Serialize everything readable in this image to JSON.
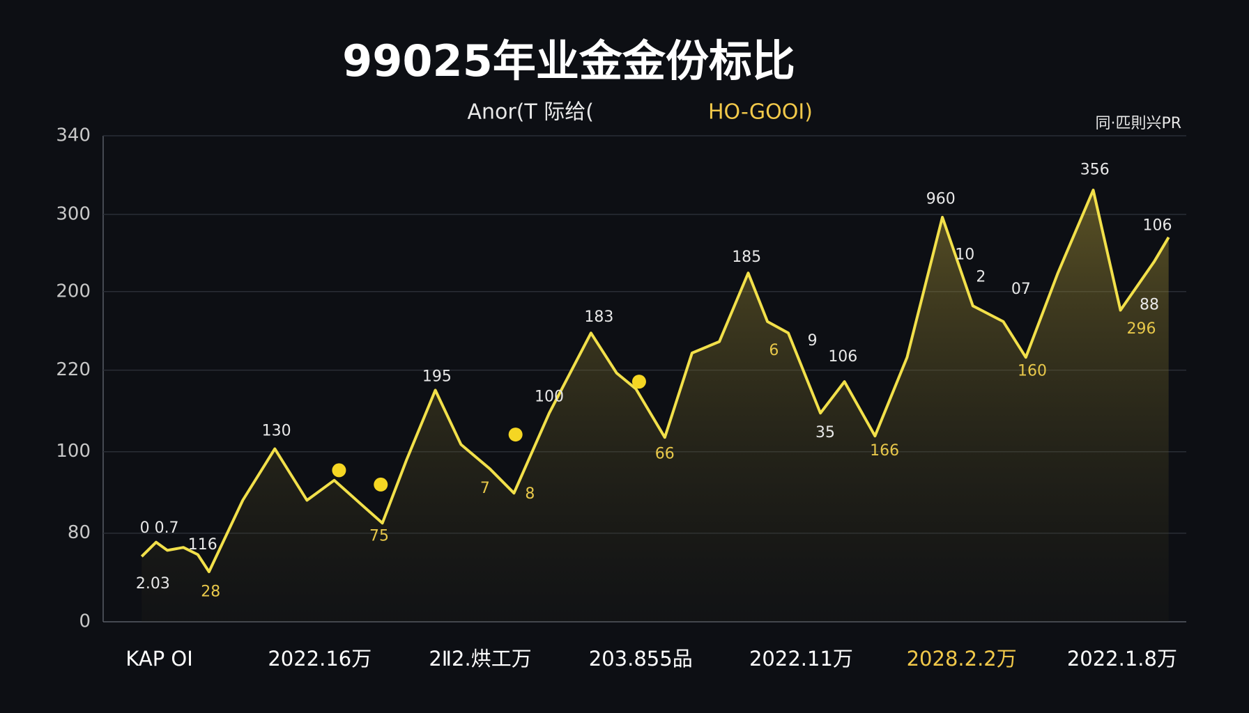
{
  "chart_data": {
    "type": "line",
    "title": "99025年业金金份标比",
    "subtitle": "Anor(T 际给(",
    "subtitle_highlight": "HO-GOOI)",
    "corner_note": "同·匹則兴PR",
    "xlim": [
      -0.35,
      6.4
    ],
    "xticks": [
      {
        "value": 0,
        "label": "KAP OI"
      },
      {
        "value": 1,
        "label": "2022.16万"
      },
      {
        "value": 2,
        "label": "2Ⅱ2.烘工万"
      },
      {
        "value": 3,
        "label": "203.855品"
      },
      {
        "value": 4,
        "label": "2022.11万"
      },
      {
        "value": 5,
        "label": "2028.2.2万"
      },
      {
        "value": 6,
        "label": "2022.1.8万"
      }
    ],
    "xtick_highlight": 5,
    "ylim": [
      0,
      340
    ],
    "yticks": [
      340,
      {
        "value": 285,
        "label": "300"
      },
      {
        "value": 231,
        "label": "200"
      },
      {
        "value": 176,
        "label": "220"
      },
      {
        "value": 119,
        "label": "100"
      },
      {
        "value": 62,
        "label": "80"
      },
      0
    ],
    "grid": true,
    "color": "#f2e04a",
    "x": [
      -0.11,
      -0.02,
      0.05,
      0.15,
      0.24,
      0.31,
      0.52,
      0.72,
      0.92,
      1.09,
      1.26,
      1.39,
      1.54,
      1.72,
      1.88,
      2.06,
      2.21,
      2.43,
      2.69,
      2.85,
      2.97,
      3.15,
      3.32,
      3.49,
      3.67,
      3.79,
      3.92,
      4.12,
      4.27,
      4.46,
      4.66,
      4.88,
      5.07,
      5.26,
      5.4,
      5.6,
      5.82,
      5.99,
      6.2,
      6.29
    ],
    "values": [
      45.7,
      55.7,
      50,
      52,
      47,
      35,
      85,
      121,
      85,
      99,
      82,
      69,
      113,
      162,
      124,
      107,
      90,
      146,
      202,
      174,
      163,
      129,
      188,
      196,
      244,
      210,
      202,
      146,
      168,
      130,
      185,
      283,
      221,
      210,
      185,
      244,
      302,
      218,
      252,
      269
    ],
    "highlights": {
      "x": [
        1.12,
        1.38,
        2.22,
        2.99
      ],
      "values": [
        106,
        96,
        131,
        168
      ],
      "color": "#f5d623"
    },
    "annotations": [
      {
        "text": "0 0.7",
        "x": 0,
        "y": 65.2,
        "color": "#e8e8e8"
      },
      {
        "text": "2.03",
        "x": -0.04,
        "y": 26.2,
        "color": "#e8e8e8"
      },
      {
        "text": "116",
        "x": 0.27,
        "y": 53.5,
        "color": "#e8e8e8"
      },
      {
        "text": "28",
        "x": 0.32,
        "y": 20.6,
        "color": "#e8c84a"
      },
      {
        "text": "130",
        "x": 0.73,
        "y": 133.2,
        "color": "#e8e8e8"
      },
      {
        "text": "75",
        "x": 1.37,
        "y": 59.6,
        "color": "#e8c84a"
      },
      {
        "text": "195",
        "x": 1.73,
        "y": 171.1,
        "color": "#e8e8e8"
      },
      {
        "text": "7",
        "x": 2.03,
        "y": 93.1,
        "color": "#e8c84a"
      },
      {
        "text": "8",
        "x": 2.31,
        "y": 89.2,
        "color": "#e8c84a"
      },
      {
        "text": "100",
        "x": 2.43,
        "y": 157.2,
        "color": "#e8e8e8"
      },
      {
        "text": "183",
        "x": 2.74,
        "y": 212.9,
        "color": "#e8e8e8"
      },
      {
        "text": "66",
        "x": 3.15,
        "y": 117.1,
        "color": "#e8c84a"
      },
      {
        "text": "185",
        "x": 3.66,
        "y": 254.7,
        "color": "#e8e8e8"
      },
      {
        "text": "6",
        "x": 3.83,
        "y": 189.5,
        "color": "#e8c84a"
      },
      {
        "text": "9",
        "x": 4.07,
        "y": 196.2,
        "color": "#e8e8e8"
      },
      {
        "text": "35",
        "x": 4.15,
        "y": 132.1,
        "color": "#e8e8e8"
      },
      {
        "text": "106",
        "x": 4.26,
        "y": 185.1,
        "color": "#e8e8e8"
      },
      {
        "text": "166",
        "x": 4.52,
        "y": 119.3,
        "color": "#e8c84a"
      },
      {
        "text": "960",
        "x": 4.87,
        "y": 295.4,
        "color": "#e8e8e8"
      },
      {
        "text": "10",
        "x": 5.02,
        "y": 256.4,
        "color": "#e8e8e8"
      },
      {
        "text": "2",
        "x": 5.12,
        "y": 240.8,
        "color": "#e8e8e8"
      },
      {
        "text": "07",
        "x": 5.37,
        "y": 232.4,
        "color": "#e8e8e8"
      },
      {
        "text": "160",
        "x": 5.44,
        "y": 175,
        "color": "#e8c84a"
      },
      {
        "text": "356",
        "x": 5.83,
        "y": 316,
        "color": "#e8e8e8"
      },
      {
        "text": "106",
        "x": 6.22,
        "y": 277,
        "color": "#e8e8e8"
      },
      {
        "text": "88",
        "x": 6.17,
        "y": 221.3,
        "color": "#e8e8e8"
      },
      {
        "text": "296",
        "x": 6.12,
        "y": 204.6,
        "color": "#e8c84a"
      }
    ]
  }
}
